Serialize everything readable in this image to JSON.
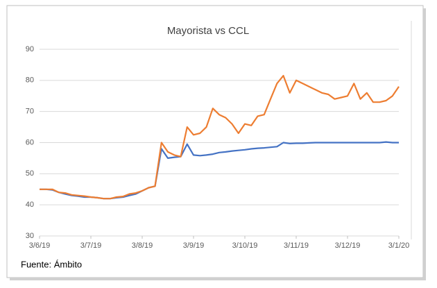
{
  "chart_data": {
    "type": "line",
    "title": "Mayorista vs CCL",
    "source": "Fuente: Ámbito",
    "categories": [
      "3/6/19",
      null,
      null,
      null,
      null,
      null,
      null,
      null,
      "3/7/19",
      null,
      null,
      null,
      null,
      null,
      null,
      null,
      "3/8/19",
      null,
      null,
      null,
      null,
      null,
      null,
      null,
      "3/9/19",
      null,
      null,
      null,
      null,
      null,
      null,
      null,
      "3/10/19",
      null,
      null,
      null,
      null,
      null,
      null,
      null,
      "3/11/19",
      null,
      null,
      null,
      null,
      null,
      null,
      null,
      "3/12/19",
      null,
      null,
      null,
      null,
      null,
      null,
      null,
      "3/1/20"
    ],
    "series": [
      {
        "color": "#4472c4",
        "values": [
          45,
          45,
          44.8,
          44,
          43.5,
          43,
          42.8,
          42.5,
          42.5,
          42.3,
          42,
          42,
          42.3,
          42.5,
          43,
          43.5,
          44.5,
          45.5,
          46,
          58,
          55,
          55.3,
          55.5,
          59.5,
          56,
          55.8,
          56,
          56.3,
          56.8,
          57,
          57.3,
          57.5,
          57.7,
          58,
          58.2,
          58.3,
          58.5,
          58.7,
          60,
          59.7,
          59.8,
          59.8,
          59.9,
          60,
          60,
          60,
          60,
          60,
          60,
          60,
          60,
          60,
          60,
          60,
          60.2,
          60,
          60
        ]
      },
      {
        "color": "#ed7d31",
        "values": [
          45,
          45,
          45,
          44,
          43.8,
          43.2,
          43,
          42.8,
          42.5,
          42.3,
          42,
          42,
          42.5,
          42.7,
          43.5,
          43.8,
          44.5,
          45.5,
          46,
          60,
          57,
          56,
          55.5,
          65,
          62.5,
          63,
          65,
          71,
          69,
          68,
          66,
          63,
          66,
          65.5,
          68.5,
          69,
          74,
          79,
          81.5,
          76,
          80,
          79,
          78,
          77,
          76,
          75.5,
          74,
          74.5,
          75,
          79,
          74,
          76,
          73,
          73,
          73.5,
          75,
          78
        ]
      }
    ],
    "ylim": [
      30,
      90
    ],
    "yticks": [
      30,
      40,
      50,
      60,
      70,
      80,
      90
    ],
    "grid": true
  }
}
